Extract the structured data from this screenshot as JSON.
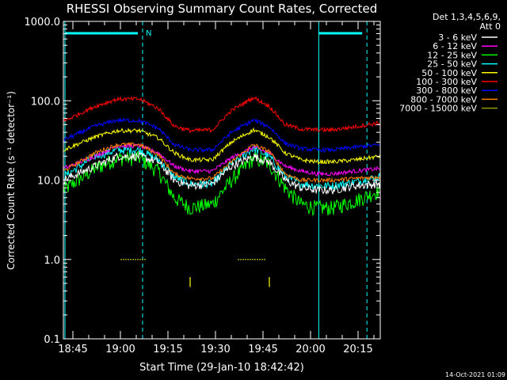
{
  "chart_data": {
    "type": "line",
    "title": "RHESSI Observing Summary Count Rates, Corrected",
    "xlabel": "Start Time (29-Jan-10 18:42:42)",
    "ylabel": "Corrected Count Rate (s⁻¹ detector⁻¹)",
    "yscale": "log",
    "ylim": [
      0.1,
      1000
    ],
    "xlim_minutes_from_1842": [
      0,
      100
    ],
    "x_ticks": [
      "18:45",
      "19:00",
      "19:15",
      "19:30",
      "19:45",
      "20:00",
      "20:15"
    ],
    "y_ticks": [
      "0.1",
      "1.0",
      "10.0",
      "100.0",
      "1000.0"
    ],
    "legend_header": [
      "Det 1,3,4,5,6,9,",
      "Att 0"
    ],
    "legend_position": "top-right",
    "series": [
      {
        "name": "3 - 6 keV",
        "color": "#ffffff",
        "x": [
          0,
          10,
          17,
          24,
          30,
          35,
          40,
          47,
          53,
          60,
          65,
          70,
          75,
          80,
          85,
          92,
          100
        ],
        "y": [
          10,
          15,
          20,
          20,
          17,
          10,
          8.5,
          9,
          15,
          20,
          17,
          10,
          8,
          7.5,
          7.5,
          8.5,
          9
        ]
      },
      {
        "name": "6 - 12 keV",
        "color": "#ff00ff",
        "x": [
          0,
          10,
          17,
          24,
          30,
          35,
          40,
          47,
          53,
          60,
          65,
          70,
          75,
          80,
          85,
          92,
          100
        ],
        "y": [
          14,
          20,
          27,
          27,
          22,
          15,
          13,
          13,
          19,
          26,
          22,
          15,
          13,
          12,
          12,
          13,
          14
        ]
      },
      {
        "name": "12 - 25 keV",
        "color": "#00ff00",
        "x": [
          0,
          10,
          17,
          24,
          30,
          35,
          40,
          47,
          53,
          60,
          65,
          70,
          75,
          80,
          85,
          92,
          100
        ],
        "y": [
          7.5,
          14,
          19,
          19,
          13,
          6,
          4.5,
          5,
          10,
          19,
          16,
          8,
          5,
          4.5,
          4.5,
          5.5,
          7.5
        ]
      },
      {
        "name": "25 - 50 keV",
        "color": "#00ffff",
        "x": [
          0,
          10,
          17,
          24,
          30,
          35,
          40,
          47,
          53,
          60,
          65,
          70,
          75,
          80,
          85,
          92,
          100
        ],
        "y": [
          11,
          20,
          24,
          24,
          18,
          11,
          9,
          9,
          16,
          25,
          20,
          11,
          9,
          8.5,
          8.5,
          9.5,
          11
        ]
      },
      {
        "name": "50 - 100 keV",
        "color": "#ffff00",
        "x": [
          0,
          10,
          17,
          24,
          30,
          35,
          40,
          47,
          53,
          60,
          65,
          70,
          75,
          80,
          85,
          92,
          100
        ],
        "y": [
          24,
          35,
          42,
          42,
          34,
          22,
          18,
          18,
          30,
          43,
          35,
          22,
          18,
          17,
          17,
          18,
          20
        ]
      },
      {
        "name": "100 - 300 keV",
        "color": "#ff0000",
        "x": [
          0,
          10,
          17,
          24,
          30,
          35,
          40,
          47,
          53,
          60,
          65,
          70,
          75,
          80,
          85,
          92,
          100
        ],
        "y": [
          55,
          85,
          105,
          105,
          80,
          48,
          42,
          43,
          75,
          110,
          85,
          50,
          44,
          43,
          43,
          47,
          53
        ]
      },
      {
        "name": "300 - 800 keV",
        "color": "#0000ff",
        "x": [
          0,
          10,
          17,
          24,
          30,
          35,
          40,
          47,
          53,
          60,
          65,
          70,
          75,
          80,
          85,
          92,
          100
        ],
        "y": [
          32,
          48,
          57,
          56,
          45,
          28,
          24,
          24,
          40,
          57,
          47,
          29,
          25,
          24,
          24,
          26,
          28
        ]
      },
      {
        "name": "800 - 7000 keV",
        "color": "#ff8000",
        "x": [
          0,
          10,
          17,
          24,
          30,
          35,
          40,
          47,
          53,
          60,
          65,
          70,
          75,
          80,
          85,
          92,
          100
        ],
        "y": [
          13,
          22,
          28,
          28,
          21,
          12,
          10.5,
          10.5,
          17,
          28,
          23,
          12,
          10,
          10,
          10,
          10.5,
          11
        ]
      },
      {
        "name": "7000 - 15000 keV",
        "color": "#999900",
        "x": [
          18,
          22,
          26,
          55,
          58,
          61,
          64
        ],
        "y": [
          1.0,
          1.0,
          1.0,
          1.0,
          1.0,
          1.0,
          1.0
        ]
      }
    ],
    "shaded_regions": {
      "color": "#00ffff",
      "solid_lines_minutes": [
        0.5,
        80.6
      ],
      "dashed_lines_minutes": [
        25,
        95.8
      ],
      "bars": [
        {
          "x0": 0.5,
          "x1": 25,
          "label": "N"
        },
        {
          "x0": 80.6,
          "x1": 95.8,
          "label": ""
        }
      ]
    },
    "spikes": {
      "color": "#999900",
      "minutes": [
        40,
        65
      ],
      "y0": 0.45,
      "y1": 0.6
    }
  },
  "footer": {
    "timestamp": "14-Oct-2021 01:09"
  }
}
